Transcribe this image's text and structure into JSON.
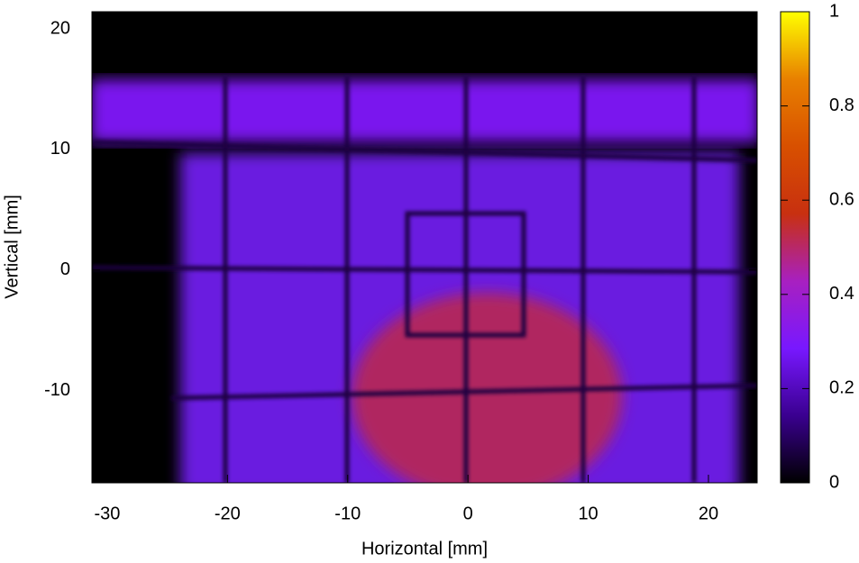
{
  "chart_data": {
    "type": "heatmap",
    "xlabel": "Horizontal [mm]",
    "ylabel": "Vertical [mm]",
    "xlim": [
      -31.27,
      24.05
    ],
    "ylim": [
      -17.64,
      21.42
    ],
    "xticks": [
      -30,
      -20,
      -10,
      0,
      10,
      20
    ],
    "yticks": [
      -10,
      0,
      10,
      20
    ],
    "colorbar": {
      "lim": [
        0,
        1
      ],
      "ticks": [
        0,
        0.2,
        0.4,
        0.6,
        0.8,
        1
      ],
      "colors": [
        "#000000",
        "#3a0090",
        "#7818ff",
        "#a820c0",
        "#c83010",
        "#d85000",
        "#e88000",
        "#ffff00"
      ]
    }
  }
}
